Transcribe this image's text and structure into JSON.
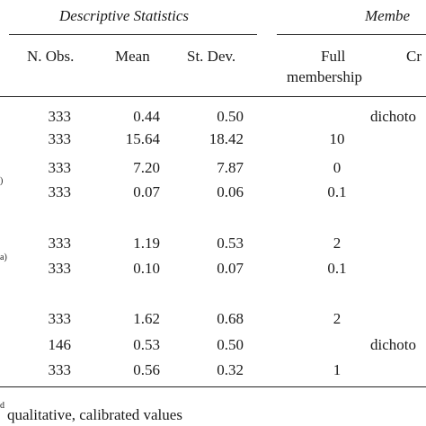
{
  "table": {
    "group_headers": [
      "Descriptive Statistics",
      "Membe"
    ],
    "columns": [
      "N. Obs.",
      "Mean",
      "St. Dev.",
      "Full",
      "membership",
      "Cr"
    ],
    "rows": [
      {
        "n": "333",
        "mean": "0.44",
        "sd": "0.50",
        "membership": "dichoto"
      },
      {
        "n": "333",
        "mean": "15.64",
        "sd": "18.42",
        "full": "10"
      },
      {
        "n": "333",
        "mean": "7.20",
        "sd": "7.87",
        "full": "0"
      },
      {
        "note": ")",
        "n": "333",
        "mean": "0.07",
        "sd": "0.06",
        "full": "0.1"
      },
      {
        "n": "333",
        "mean": "1.19",
        "sd": "0.53",
        "full": "2"
      },
      {
        "note": "a)",
        "n": "333",
        "mean": "0.10",
        "sd": "0.07",
        "full": "0.1"
      },
      {
        "n": "333",
        "mean": "1.62",
        "sd": "0.68",
        "full": "2"
      },
      {
        "n": "146",
        "mean": "0.53",
        "sd": "0.50",
        "membership": "dichoto"
      },
      {
        "n": "333",
        "mean": "0.56",
        "sd": "0.32",
        "full": "1"
      }
    ],
    "footnote": {
      "mark": "d",
      "text": "qualitative, calibrated values"
    }
  }
}
